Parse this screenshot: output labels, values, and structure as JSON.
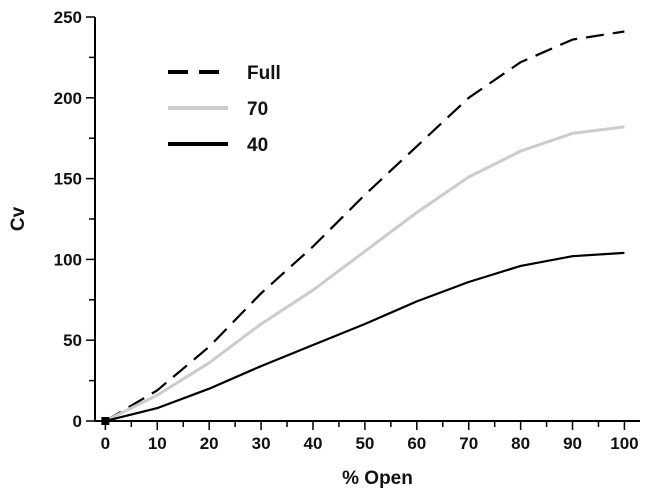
{
  "chart_data": {
    "type": "line",
    "title": "",
    "xlabel": "% Open",
    "ylabel": "Cv",
    "xlim": [
      -2,
      103
    ],
    "ylim": [
      0,
      250
    ],
    "xticks": [
      0,
      10,
      20,
      30,
      40,
      50,
      60,
      70,
      80,
      90,
      100
    ],
    "yticks": [
      0,
      50,
      100,
      150,
      200,
      250
    ],
    "x_tick_labels": [
      "0",
      "10",
      "20",
      "30",
      "40",
      "50",
      "60",
      "70",
      "80",
      "90",
      "100"
    ],
    "y_tick_labels": [
      "0",
      "50",
      "100",
      "150",
      "200",
      "250"
    ],
    "grid": false,
    "legend_position": "top-left",
    "x": [
      0,
      10,
      20,
      30,
      40,
      50,
      60,
      70,
      80,
      90,
      100
    ],
    "series": [
      {
        "name": "Full",
        "values": [
          0,
          19,
          46,
          79,
          108,
          140,
          170,
          200,
          222,
          236,
          241
        ],
        "color": "#000000",
        "style": "dashed"
      },
      {
        "name": "70",
        "values": [
          0,
          16,
          36,
          60,
          81,
          105,
          129,
          151,
          167,
          178,
          182
        ],
        "color": "#cccccc",
        "style": "solid"
      },
      {
        "name": "40",
        "values": [
          0,
          8,
          20,
          34,
          47,
          60,
          74,
          86,
          96,
          102,
          104
        ],
        "color": "#000000",
        "style": "solid"
      }
    ],
    "origin_marker": {
      "x": 0,
      "y": 0
    }
  }
}
